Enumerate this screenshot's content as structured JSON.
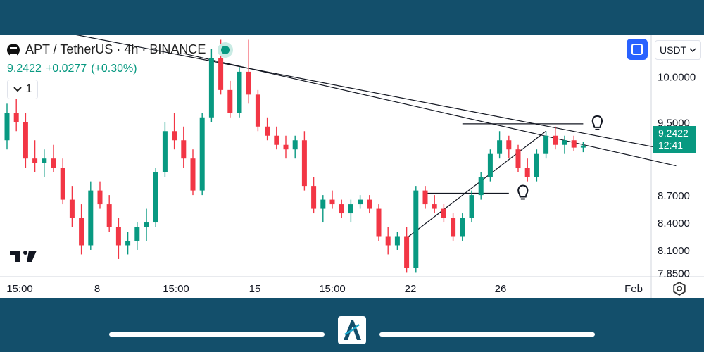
{
  "header": {
    "symbol": "APT / TetherUS · 4h · BINANCE",
    "last_price": "9.2422",
    "change": "+0.0277",
    "change_pct": "(+0.30%)",
    "collapse_count": "1"
  },
  "currency": {
    "selected": "USDT"
  },
  "price_badge": {
    "price": "9.2422",
    "countdown": "12:41"
  },
  "colors": {
    "up": "#089981",
    "down": "#f23645",
    "accent": "#2962ff",
    "frame": "#134f6b"
  },
  "icons": [
    "symbol-icon",
    "live-indicator-icon",
    "chevron-down-icon",
    "fullscreen-icon",
    "lightbulb-icon",
    "settings-icon",
    "tradingview-logo-icon",
    "brand-logo-icon"
  ],
  "chart_data": {
    "type": "candlestick",
    "symbol": "APT / TetherUS",
    "interval": "4h",
    "exchange": "BINANCE",
    "y_ticks": [
      "10.0000",
      "9.5000",
      "8.7000",
      "8.4000",
      "8.1000",
      "7.8500"
    ],
    "x_ticks": [
      "15:00",
      "8",
      "15:00",
      "15",
      "15:00",
      "22",
      "26",
      "Feb"
    ],
    "current_price": 9.2422,
    "ylim": [
      7.83,
      10.45
    ],
    "series": [
      {
        "values": [
          [
            9.3,
            9.7,
            9.2,
            9.6
          ],
          [
            9.6,
            9.9,
            9.4,
            9.5
          ],
          [
            9.5,
            9.6,
            9.0,
            9.1
          ],
          [
            9.1,
            9.3,
            8.95,
            9.05
          ],
          [
            9.05,
            9.2,
            8.9,
            9.1
          ],
          [
            9.1,
            9.25,
            8.95,
            9.0
          ],
          [
            9.0,
            9.1,
            8.6,
            8.65
          ],
          [
            8.65,
            8.8,
            8.35,
            8.45
          ],
          [
            8.45,
            8.6,
            8.05,
            8.15
          ],
          [
            8.15,
            8.85,
            8.1,
            8.75
          ],
          [
            8.75,
            8.85,
            8.55,
            8.6
          ],
          [
            8.6,
            8.7,
            8.3,
            8.35
          ],
          [
            8.35,
            8.45,
            8.0,
            8.15
          ],
          [
            8.15,
            8.3,
            8.05,
            8.2
          ],
          [
            8.2,
            8.4,
            8.1,
            8.35
          ],
          [
            8.35,
            8.55,
            8.2,
            8.4
          ],
          [
            8.4,
            9.0,
            8.35,
            8.95
          ],
          [
            8.95,
            9.5,
            8.9,
            9.4
          ],
          [
            9.4,
            9.6,
            9.2,
            9.3
          ],
          [
            9.3,
            9.45,
            9.0,
            9.1
          ],
          [
            9.1,
            9.2,
            8.7,
            8.75
          ],
          [
            8.75,
            9.6,
            8.7,
            9.55
          ],
          [
            9.55,
            10.3,
            9.5,
            10.2
          ],
          [
            10.2,
            10.4,
            9.8,
            9.85
          ],
          [
            9.85,
            9.95,
            9.55,
            9.6
          ],
          [
            9.6,
            10.1,
            9.55,
            10.05
          ],
          [
            10.05,
            10.4,
            9.7,
            9.8
          ],
          [
            9.8,
            9.85,
            9.4,
            9.45
          ],
          [
            9.45,
            9.55,
            9.3,
            9.35
          ],
          [
            9.35,
            9.45,
            9.2,
            9.25
          ],
          [
            9.25,
            9.35,
            9.1,
            9.2
          ],
          [
            9.2,
            9.35,
            9.1,
            9.3
          ],
          [
            9.3,
            9.4,
            8.75,
            8.8
          ],
          [
            8.8,
            8.9,
            8.5,
            8.55
          ],
          [
            8.55,
            8.7,
            8.4,
            8.65
          ],
          [
            8.65,
            8.75,
            8.55,
            8.6
          ],
          [
            8.6,
            8.65,
            8.45,
            8.5
          ],
          [
            8.5,
            8.65,
            8.4,
            8.6
          ],
          [
            8.6,
            8.7,
            8.55,
            8.65
          ],
          [
            8.65,
            8.7,
            8.5,
            8.55
          ],
          [
            8.55,
            8.6,
            8.2,
            8.25
          ],
          [
            8.25,
            8.35,
            8.05,
            8.15
          ],
          [
            8.15,
            8.3,
            8.1,
            8.25
          ],
          [
            8.25,
            8.35,
            7.85,
            7.9
          ],
          [
            7.9,
            8.8,
            7.85,
            8.75
          ],
          [
            8.75,
            8.8,
            8.55,
            8.6
          ],
          [
            8.6,
            8.7,
            8.5,
            8.55
          ],
          [
            8.55,
            8.6,
            8.4,
            8.45
          ],
          [
            8.45,
            8.5,
            8.2,
            8.25
          ],
          [
            8.25,
            8.5,
            8.2,
            8.45
          ],
          [
            8.45,
            8.75,
            8.4,
            8.7
          ],
          [
            8.7,
            8.95,
            8.65,
            8.9
          ],
          [
            8.9,
            9.2,
            8.85,
            9.15
          ],
          [
            9.15,
            9.4,
            9.1,
            9.3
          ],
          [
            9.3,
            9.35,
            9.1,
            9.2
          ],
          [
            9.2,
            9.25,
            8.95,
            9.0
          ],
          [
            9.0,
            9.1,
            8.85,
            8.9
          ],
          [
            8.9,
            9.2,
            8.85,
            9.15
          ],
          [
            9.15,
            9.4,
            9.1,
            9.35
          ],
          [
            9.35,
            9.45,
            9.2,
            9.25
          ],
          [
            9.25,
            9.35,
            9.15,
            9.3
          ],
          [
            9.3,
            9.35,
            9.18,
            9.22
          ],
          [
            9.22,
            9.28,
            9.17,
            9.2422
          ]
        ]
      }
    ],
    "annotations": [
      {
        "type": "trendline",
        "from": [
          -4,
          10.68
        ],
        "to": [
          72,
          9.18
        ]
      },
      {
        "type": "trendline",
        "from": [
          19,
          10.25
        ],
        "to": [
          72,
          9.02
        ]
      },
      {
        "type": "trendline",
        "from": [
          43,
          8.23
        ],
        "to": [
          58,
          9.4
        ]
      },
      {
        "type": "horizontal",
        "start_index": 49,
        "end_index": 62,
        "price": 9.48,
        "icon": "lightbulb-icon"
      },
      {
        "type": "horizontal",
        "start_index": 45,
        "end_index": 54,
        "price": 8.72,
        "icon": "lightbulb-icon"
      }
    ]
  }
}
